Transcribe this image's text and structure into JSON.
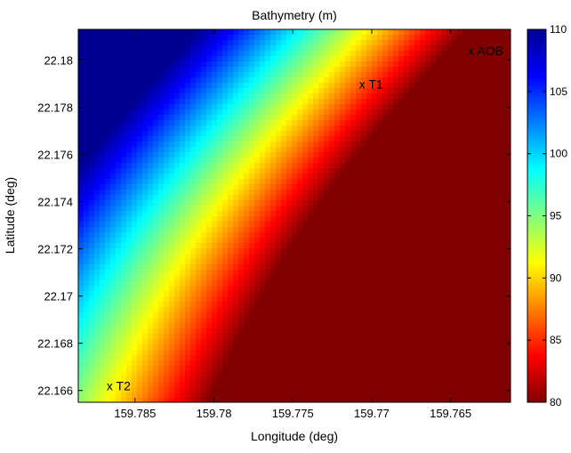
{
  "chart_data": {
    "type": "heatmap",
    "title": "Bathymetry (m)",
    "xlabel": "Longitude (deg)",
    "ylabel": "Latitude (deg)",
    "x_axis_reversed": true,
    "xlim": [
      159.7886,
      159.7612
    ],
    "ylim": [
      22.1655,
      22.1813
    ],
    "x_ticks": [
      159.785,
      159.78,
      159.775,
      159.77,
      159.765
    ],
    "x_tick_labels": [
      "159.785",
      "159.78",
      "159.775",
      "159.77",
      "159.765"
    ],
    "y_ticks": [
      22.166,
      22.168,
      22.17,
      22.172,
      22.174,
      22.176,
      22.178,
      22.18
    ],
    "y_tick_labels": [
      "22.166",
      "22.168",
      "22.17",
      "22.172",
      "22.174",
      "22.176",
      "22.178",
      "22.18"
    ],
    "colorbar": {
      "colormap": "jet-reversed",
      "min": 80,
      "max": 110,
      "ticks": [
        80,
        85,
        90,
        95,
        100,
        105,
        110
      ],
      "tick_labels": [
        "80",
        "85",
        "90",
        "95",
        "100",
        "105",
        "110"
      ]
    },
    "annotations": [
      {
        "text": "x AOB",
        "lon": 159.7639,
        "lat": 22.1802
      },
      {
        "text": "x T1",
        "lon": 159.7708,
        "lat": 22.1788
      },
      {
        "text": "x T2",
        "lon": 159.7868,
        "lat": 22.166
      }
    ],
    "surface": {
      "description_value": "depth decreases from 110 m (northwest, deep) to 80 m (southeast, shallow) across a curved slope",
      "deep_value": 110,
      "shallow_value": 80
    },
    "grid": false
  }
}
